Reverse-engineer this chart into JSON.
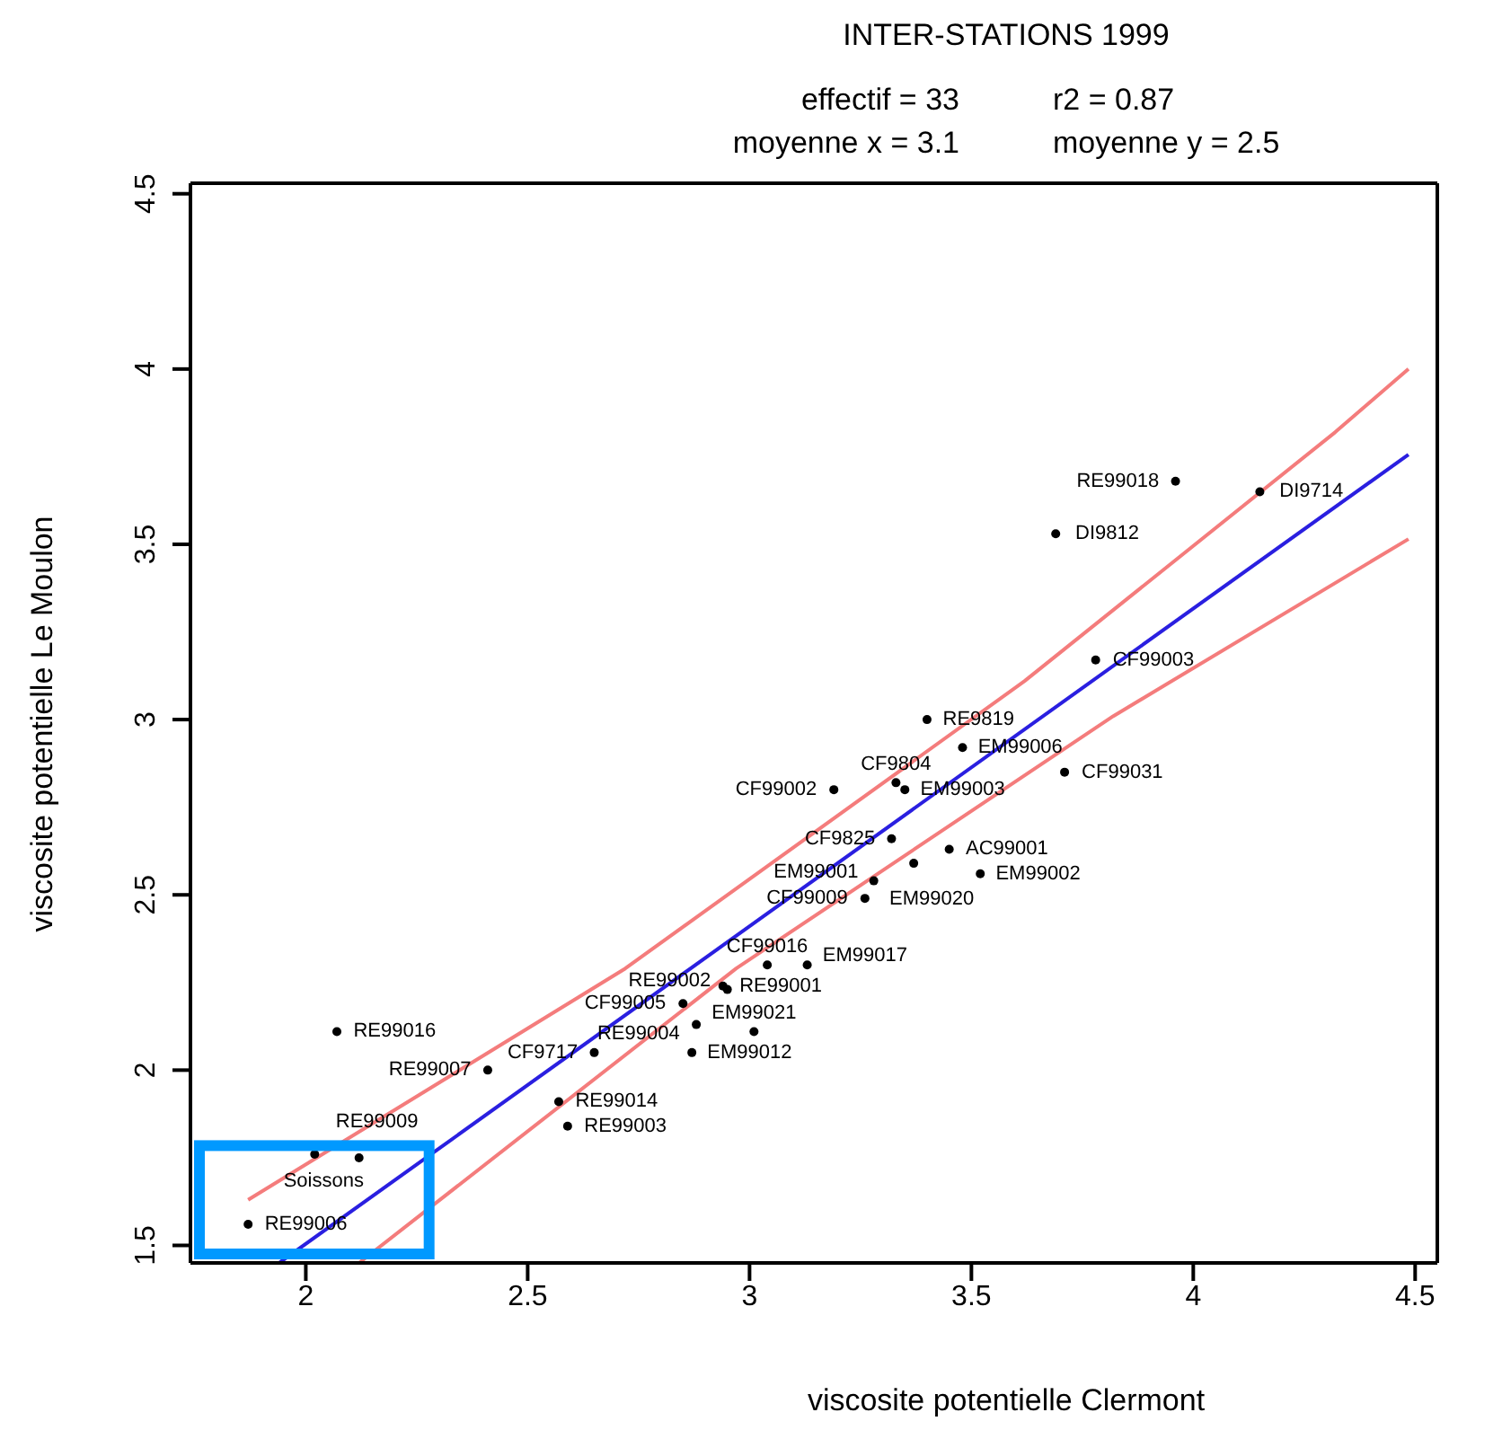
{
  "chart_data": {
    "type": "scatter",
    "title": "INTER-STATIONS 1999",
    "annotations": [
      "effectif = 33",
      "r2 = 0.87",
      "moyenne x = 3.1",
      "moyenne y = 2.5"
    ],
    "xlabel": "viscosite potentielle Clermont",
    "ylabel": "viscosite potentielle Le Moulon",
    "xlim": [
      1.74,
      4.55
    ],
    "xticks": [
      2.0,
      2.5,
      3.0,
      3.5,
      4.0,
      4.5
    ],
    "ylim": [
      1.45,
      4.53
    ],
    "yticks": [
      1.5,
      2.0,
      2.5,
      3.0,
      3.5,
      4.0,
      4.5
    ],
    "series": [
      {
        "marker": "circle",
        "color": "#000000",
        "x": [
          2.07,
          2.41,
          2.57,
          2.59,
          2.65,
          2.87,
          2.02,
          2.12,
          1.87,
          2.85,
          2.88,
          3.01,
          2.94,
          2.95,
          3.04,
          3.13,
          3.26,
          3.28,
          3.37,
          3.32,
          3.45,
          3.52,
          3.33,
          3.19,
          3.35,
          3.4,
          3.48,
          3.71,
          3.78,
          3.69,
          3.96,
          4.15
        ],
        "values": [
          2.11,
          2.0,
          1.91,
          1.84,
          2.05,
          2.05,
          1.76,
          1.75,
          1.56,
          2.19,
          2.13,
          2.11,
          2.24,
          2.23,
          2.3,
          2.3,
          2.49,
          2.54,
          2.59,
          2.66,
          2.63,
          2.56,
          2.82,
          2.8,
          2.8,
          3.0,
          2.92,
          2.85,
          3.17,
          3.53,
          3.68,
          3.65
        ],
        "value_labels": [
          "RE99016",
          "RE99007",
          "RE99014",
          "RE99003",
          "CF9717",
          "EM99012",
          "Soissons",
          "RE99009",
          "RE99006",
          "CF99005",
          "RE99004",
          "EM99021",
          "RE99001",
          "RE99002",
          "CF99016",
          "EM99017",
          "CF99009",
          "EM99001",
          "EM99020",
          "CF9825",
          "AC99001",
          "EM99002",
          "CF9804",
          "CF99002",
          "EM99003",
          "RE9819",
          "EM99006",
          "CF99031",
          "CF99003",
          "DI9812",
          "RE99018",
          "DI9714"
        ]
      },
      {
        "type": "line",
        "color": "#2a1fe0",
        "x": [
          1.94,
          4.485
        ],
        "values": [
          1.45,
          3.756
        ]
      },
      {
        "type": "line",
        "color": "#f47c7c",
        "x": [
          1.87,
          2.72,
          3.62,
          4.32,
          4.485
        ],
        "values": [
          1.63,
          2.29,
          3.11,
          3.82,
          4.0
        ]
      },
      {
        "type": "line",
        "color": "#f47c7c",
        "x": [
          2.12,
          2.97,
          3.82,
          4.485
        ],
        "values": [
          1.45,
          2.29,
          3.01,
          3.515
        ]
      }
    ]
  }
}
